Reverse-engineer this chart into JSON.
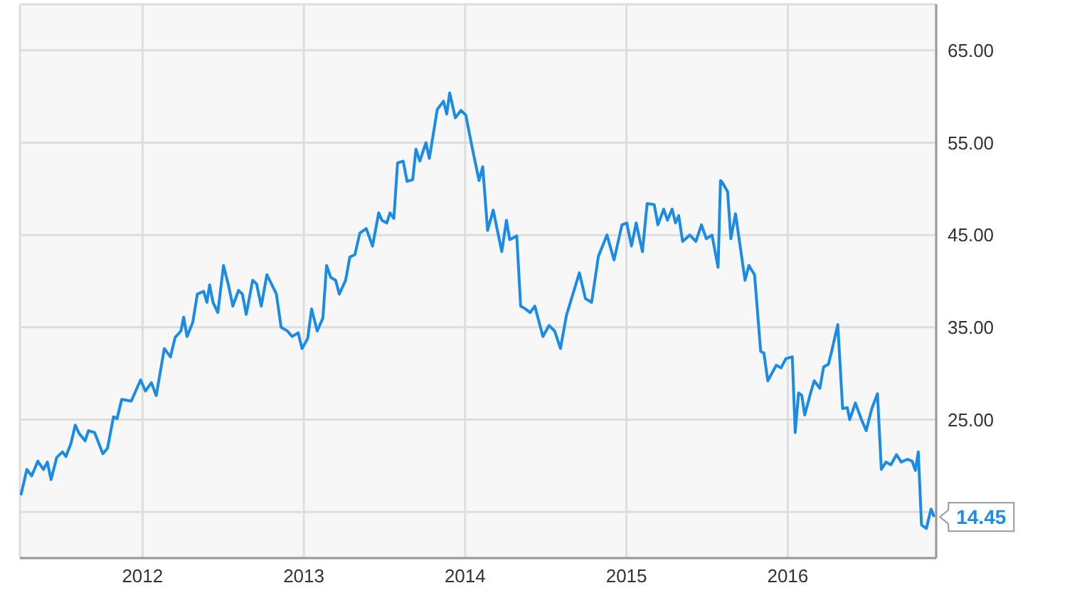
{
  "chart_data": {
    "type": "line",
    "x": [
      2011.246,
      2011.283,
      2011.313,
      2011.351,
      2011.386,
      2011.41,
      2011.433,
      2011.468,
      2011.504,
      2011.525,
      2011.556,
      2011.583,
      2011.607,
      2011.644,
      2011.665,
      2011.703,
      2011.754,
      2011.783,
      2011.82,
      2011.842,
      2011.871,
      2011.93,
      2011.988,
      2012.018,
      2012.055,
      2012.085,
      2012.135,
      2012.173,
      2012.202,
      2012.238,
      2012.255,
      2012.276,
      2012.311,
      2012.34,
      2012.379,
      2012.399,
      2012.416,
      2012.437,
      2012.467,
      2012.502,
      2012.531,
      2012.56,
      2012.595,
      2012.619,
      2012.643,
      2012.683,
      2012.707,
      2012.736,
      2012.771,
      2012.83,
      2012.859,
      2012.898,
      2012.927,
      2012.965,
      2012.989,
      2013.024,
      2013.048,
      2013.083,
      2013.118,
      2013.141,
      2013.167,
      2013.197,
      2013.22,
      2013.259,
      2013.285,
      2013.317,
      2013.347,
      2013.387,
      2013.426,
      2013.464,
      2013.484,
      2013.514,
      2013.534,
      2013.558,
      2013.581,
      2013.616,
      2013.64,
      2013.675,
      2013.695,
      2013.719,
      2013.757,
      2013.778,
      2013.827,
      2013.866,
      2013.886,
      2013.904,
      2013.939,
      2013.974,
      2014.004,
      2014.042,
      2014.086,
      2014.109,
      2014.139,
      2014.174,
      2014.227,
      2014.256,
      2014.276,
      2014.32,
      2014.344,
      2014.373,
      2014.403,
      2014.432,
      2014.482,
      2014.52,
      2014.555,
      2014.591,
      2014.628,
      2014.673,
      2014.708,
      2014.746,
      2014.784,
      2014.826,
      2014.879,
      2014.923,
      2014.972,
      2015.002,
      2015.031,
      2015.06,
      2015.099,
      2015.128,
      2015.172,
      2015.195,
      2015.231,
      2015.254,
      2015.283,
      2015.304,
      2015.324,
      2015.348,
      2015.392,
      2015.43,
      2015.465,
      2015.495,
      2015.53,
      2015.568,
      2015.583,
      2015.594,
      2015.627,
      2015.647,
      2015.676,
      2015.735,
      2015.759,
      2015.794,
      2015.832,
      2015.852,
      2015.876,
      2015.929,
      2015.958,
      2015.988,
      2016.028,
      2016.046,
      2016.067,
      2016.087,
      2016.105,
      2016.14,
      2016.164,
      2016.199,
      2016.222,
      2016.252,
      2016.272,
      2016.31,
      2016.34,
      2016.369,
      2016.384,
      2016.419,
      2016.457,
      2016.486,
      2016.521,
      2016.556,
      2016.58,
      2016.609,
      2016.639,
      2016.674,
      2016.703,
      2016.741,
      2016.771,
      2016.791,
      2016.809,
      2016.829,
      2016.859,
      2016.888,
      2016.908
    ],
    "series": [
      {
        "color": "#1a8ce6",
        "values": [
          16.8,
          19.6,
          18.9,
          20.5,
          19.6,
          20.4,
          18.5,
          20.9,
          21.5,
          21.0,
          22.4,
          24.4,
          23.5,
          22.7,
          23.8,
          23.6,
          21.3,
          21.9,
          25.3,
          25.1,
          27.2,
          27.0,
          29.3,
          28.1,
          29.0,
          27.6,
          32.7,
          31.8,
          33.9,
          34.6,
          36.1,
          34.0,
          35.5,
          38.6,
          38.9,
          37.7,
          39.6,
          37.7,
          36.6,
          41.7,
          39.7,
          37.3,
          39.0,
          38.6,
          36.4,
          40.1,
          39.7,
          37.3,
          40.7,
          38.6,
          35.0,
          34.6,
          34.0,
          34.4,
          32.7,
          33.8,
          37.0,
          34.6,
          36.0,
          41.7,
          40.4,
          40.1,
          38.6,
          40.1,
          42.6,
          42.9,
          45.2,
          45.7,
          43.8,
          47.4,
          46.6,
          46.3,
          47.4,
          46.8,
          52.8,
          53.0,
          50.8,
          51.0,
          54.3,
          53.0,
          55.0,
          53.3,
          58.6,
          59.5,
          58.1,
          60.4,
          57.7,
          58.5,
          58.0,
          54.6,
          50.9,
          52.4,
          45.5,
          47.7,
          43.2,
          46.6,
          44.5,
          44.9,
          37.3,
          37.0,
          36.6,
          37.3,
          34.0,
          35.2,
          34.6,
          32.7,
          36.3,
          38.9,
          40.9,
          38.1,
          37.7,
          42.7,
          45.0,
          42.3,
          46.1,
          46.3,
          43.8,
          46.3,
          43.2,
          48.4,
          48.3,
          46.1,
          47.8,
          46.6,
          47.8,
          46.3,
          47.1,
          44.3,
          45.0,
          44.3,
          46.1,
          44.6,
          45.0,
          41.5,
          50.9,
          50.7,
          49.7,
          44.6,
          47.3,
          40.1,
          41.7,
          40.7,
          32.4,
          32.2,
          29.2,
          30.9,
          30.6,
          31.6,
          31.8,
          23.6,
          27.9,
          27.6,
          25.5,
          27.8,
          29.2,
          28.4,
          30.7,
          31.0,
          32.4,
          35.3,
          26.2,
          26.3,
          25.0,
          26.8,
          25.0,
          23.8,
          26.2,
          27.8,
          19.6,
          20.4,
          20.1,
          21.2,
          20.4,
          20.7,
          20.5,
          19.5,
          21.5,
          13.6,
          13.2,
          15.3,
          14.45
        ]
      }
    ],
    "xlim": [
      2011.24,
      2016.92
    ],
    "xticks": [
      2012,
      2013,
      2014,
      2015,
      2016
    ],
    "ylim": [
      10,
      70
    ],
    "yticks": [
      {
        "value": 15,
        "label": null
      },
      {
        "value": 25,
        "label": "25.00"
      },
      {
        "value": 35,
        "label": "35.00"
      },
      {
        "value": 45,
        "label": "45.00"
      },
      {
        "value": 55,
        "label": "55.00"
      },
      {
        "value": 65,
        "label": "65.00"
      }
    ],
    "grid": true,
    "marker": "none",
    "line_style": "solid",
    "annotations": [
      {
        "text": "14.45",
        "x": 2016.908,
        "y": 14.45
      }
    ]
  }
}
